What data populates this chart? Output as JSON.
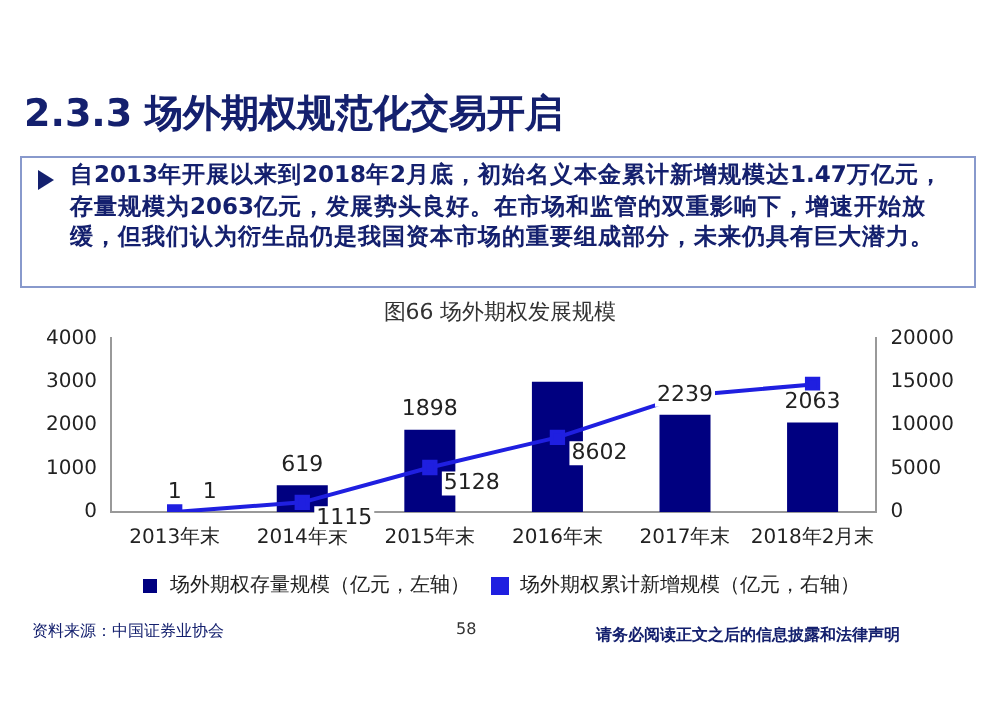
{
  "chart_data": {
    "type": "bar",
    "title": "图66 场外期权发展规模",
    "categories": [
      "2013年末",
      "2014年末",
      "2015年末",
      "2016年末",
      "2017年末",
      "2018年2月末"
    ],
    "series": [
      {
        "name": "场外期权存量规模（亿元，左轴）",
        "color": "#000080",
        "values": [
          1,
          619,
          1898,
          3000,
          2239,
          2063
        ],
        "value_labels": [
          "1",
          "619",
          "1898",
          null,
          "2239",
          "2063"
        ]
      },
      {
        "name": "场外期权累计新增规模（亿元，右轴）",
        "type": "line",
        "axis": "y2",
        "color": "#1f1fe0",
        "marker": "square",
        "values": [
          1,
          1115,
          5128,
          8602,
          13400,
          14700
        ],
        "value_labels": [
          "1",
          "1115",
          "5128",
          "8602",
          null,
          null
        ]
      }
    ],
    "ylim": [
      0,
      4000
    ],
    "yticks": [
      0,
      1000,
      2000,
      3000,
      4000
    ],
    "y2lim": [
      0,
      20000
    ],
    "y2ticks": [
      0,
      5000,
      10000,
      15000,
      20000
    ],
    "grid": false,
    "legend": "bottom",
    "annotations": [
      "2.3.3 场外期权规范化交易开启",
      "自2013年开展以来到2018年2月底，初始名义本金累计新增规模达1.47万亿元，存量规模为2063亿元，发展势头良好。在市场和监管的双重影响下，增速开始放缓，但我们认为衍生品仍是我国资本市场的重要组成部分，未来仍具有巨大潜力。",
      "资料来源：中国证券业协会",
      "58",
      "请务必阅读正文之后的信息披露和法律声明"
    ]
  }
}
